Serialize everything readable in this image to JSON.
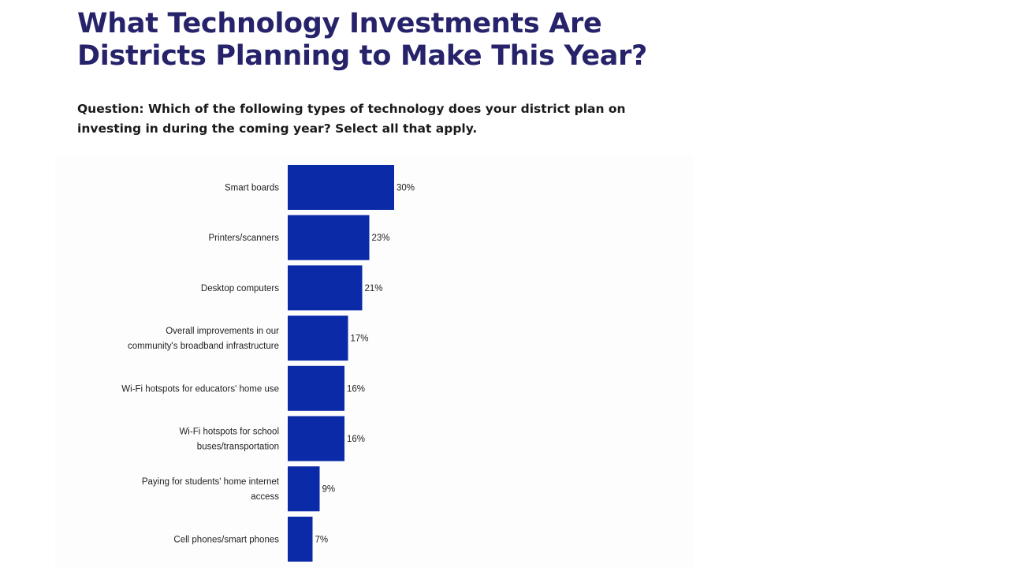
{
  "header": {
    "title": "What Technology Investments Are Districts Planning to Make This Year?",
    "subtitle": "Question: Which of the following types of technology does your district plan on investing in during the coming year? Select all that apply."
  },
  "colors": {
    "title": "#26236b",
    "bar": "#0a2aa8",
    "text": "#222222"
  },
  "chart_data": {
    "type": "bar",
    "orientation": "horizontal",
    "categories": [
      [
        "Smart boards"
      ],
      [
        "Printers/scanners"
      ],
      [
        "Desktop computers"
      ],
      [
        "Overall improvements in our",
        "community's broadband infrastructure"
      ],
      [
        "Wi-Fi hotspots for educators' home use"
      ],
      [
        "Wi-Fi hotspots for school",
        "buses/transportation"
      ],
      [
        "Paying for students' home internet",
        "access"
      ],
      [
        "Cell phones/smart phones"
      ]
    ],
    "values": [
      30,
      23,
      21,
      17,
      16,
      16,
      9,
      7
    ],
    "value_labels": [
      "30%",
      "23%",
      "21%",
      "17%",
      "16%",
      "16%",
      "9%",
      "7%"
    ],
    "unit": "%",
    "grid": false,
    "legend": "none"
  }
}
